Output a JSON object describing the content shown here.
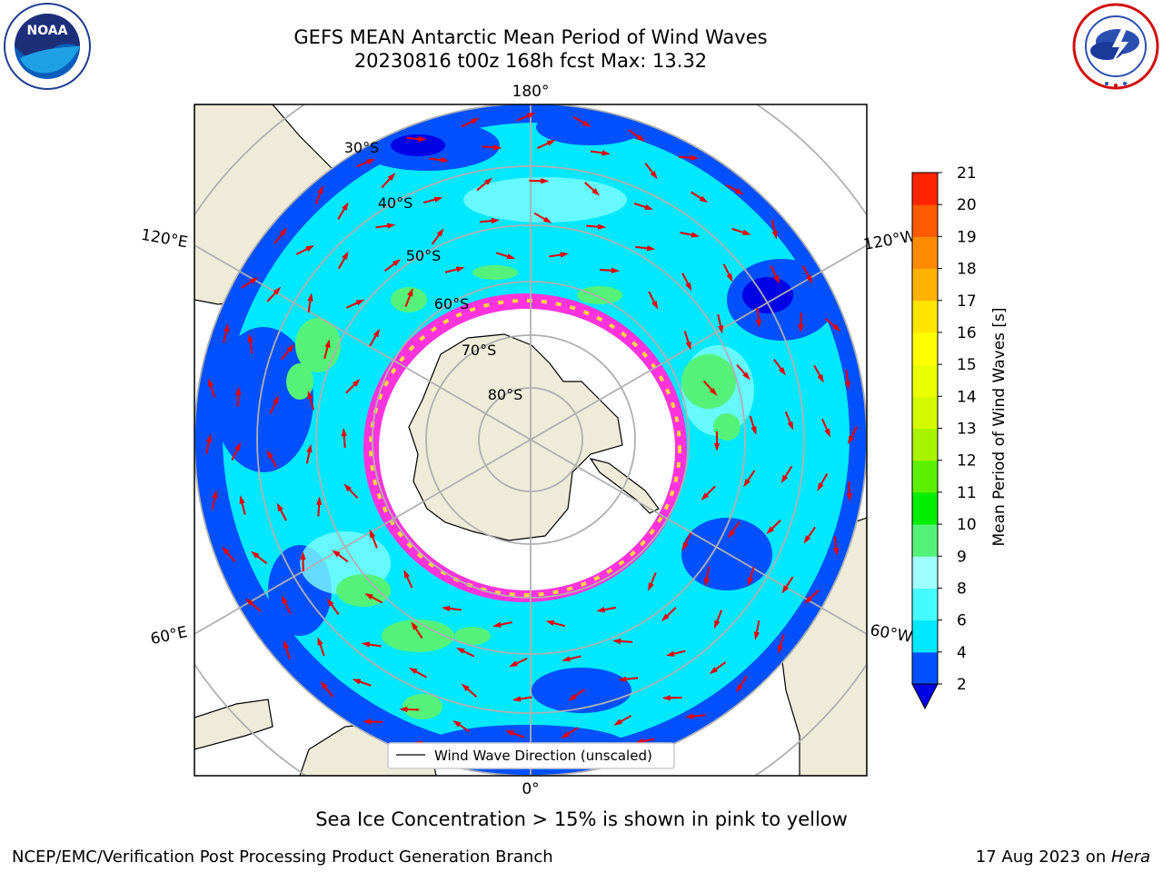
{
  "title": {
    "line1": "GEFS MEAN Antarctic Mean Period of Wind Waves",
    "line2": "20230816 t00z 168h fcst   Max: 13.32"
  },
  "map": {
    "projection": "south-polar-stereographic",
    "longitude_labels": [
      "180°",
      "120°E",
      "120°W",
      "60°E",
      "60°W",
      "0°"
    ],
    "latitude_labels": [
      "30°S",
      "40°S",
      "50°S",
      "60°S",
      "70°S",
      "80°S"
    ],
    "legend": {
      "label": "Wind Wave Direction (unscaled)"
    },
    "colors": {
      "land": "#efebd9",
      "ocean_low": "#0050ff",
      "ocean_mid": "#00e8ff",
      "ocean_green": "#55f27a",
      "sea_ice_pink": "#ff33dd",
      "sea_ice_yellow": "#ffd447",
      "arrow": "#e60000",
      "grid": "#b0b0b0"
    }
  },
  "colorbar": {
    "label": "Mean Period of Wind Waves [s]",
    "ticks": [
      "21",
      "20",
      "19",
      "18",
      "17",
      "16",
      "15",
      "14",
      "13",
      "12",
      "11",
      "10",
      "9",
      "8",
      "6",
      "4",
      "2"
    ],
    "levels": [
      2,
      4,
      6,
      8,
      9,
      10,
      11,
      12,
      13,
      14,
      15,
      16,
      17,
      18,
      19,
      20,
      21
    ],
    "colors": [
      "#0050ff",
      "#00e8ff",
      "#45fbff",
      "#a0ffff",
      "#55f27a",
      "#00ee00",
      "#5cf000",
      "#a8f400",
      "#d4fa00",
      "#eaff00",
      "#ffff00",
      "#ffe600",
      "#ffb300",
      "#ff8c00",
      "#ff5a00",
      "#ff2400"
    ],
    "extend_color": "#0000e6"
  },
  "caption": "Sea Ice Concentration > 15% is shown in pink to yellow",
  "footer": {
    "left": "NCEP/EMC/Verification Post Processing Product Generation Branch",
    "right_prefix": "17 Aug 2023 on ",
    "right_italic": "Hera"
  },
  "logos": {
    "noaa": {
      "text": "NOAA"
    }
  }
}
